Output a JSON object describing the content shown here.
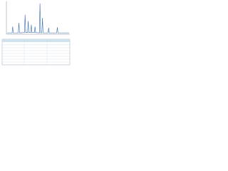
{
  "chart_data": {
    "type": "line",
    "x": [
      0,
      8,
      9,
      10,
      18,
      19,
      20,
      28,
      29,
      30,
      33,
      34,
      35,
      38,
      39,
      40,
      44,
      45,
      46,
      52,
      53,
      54,
      56,
      57,
      58,
      66,
      67,
      68,
      80,
      81,
      82,
      100
    ],
    "values": [
      2,
      2,
      22,
      2,
      2,
      34,
      2,
      3,
      60,
      3,
      3,
      40,
      3,
      3,
      28,
      3,
      3,
      22,
      3,
      2,
      96,
      2,
      2,
      50,
      2,
      2,
      18,
      2,
      2,
      20,
      2,
      2
    ],
    "color": "#3a6fb0",
    "xlim": [
      0,
      100
    ],
    "ylim": [
      0,
      100
    ]
  }
}
